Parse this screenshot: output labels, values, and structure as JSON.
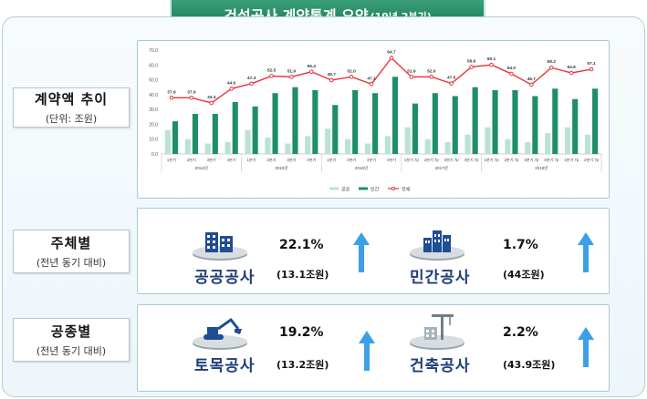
{
  "header": {
    "title": "건설공사 계약통계 요약",
    "subtitle": "(19년 2분기)"
  },
  "sections": {
    "trend": {
      "label": "계약액 추이",
      "note": "(단위: 조원)"
    },
    "by_entity": {
      "label": "주체별",
      "note": "(전년 동기 대비)"
    },
    "by_type": {
      "label": "공종별",
      "note": "(전년 동기 대비)"
    }
  },
  "stats": {
    "public": {
      "name": "공공공사",
      "pct": "22.1%",
      "amount": "(13.1조원)",
      "direction": "up",
      "icon": "office-building-icon"
    },
    "private": {
      "name": "민간공사",
      "pct": "1.7%",
      "amount": "(44조원)",
      "direction": "up",
      "icon": "apartment-icon"
    },
    "civil": {
      "name": "토목공사",
      "pct": "19.2%",
      "amount": "(13.2조원)",
      "direction": "up",
      "icon": "excavator-icon"
    },
    "building": {
      "name": "건축공사",
      "pct": "2.2%",
      "amount": "(43.9조원)",
      "direction": "up",
      "icon": "building-crane-icon"
    }
  },
  "colors": {
    "accent": "#1f8e68",
    "public_bar": "#b9e3d8",
    "private_bar": "#1f8e68",
    "total_line": "#e8333c",
    "arrow": "#3ba0e6",
    "label_text": "#1d3e7a"
  },
  "chart_data": {
    "type": "bar+line",
    "categories": [
      "1분기",
      "2분기",
      "3분기",
      "4분기",
      "1분기",
      "2분기",
      "3분기",
      "4분기",
      "1분기",
      "2분기",
      "3분기",
      "4분기",
      "1분기 7p",
      "2분기 7p",
      "3분기 7p",
      "4분기 7p",
      "1분기 7p",
      "2분기 7p",
      "3분기 7p",
      "4분기 7p",
      "1분기 7p",
      "2분기 7p"
    ],
    "years": [
      {
        "label": "2014년",
        "start": 0,
        "count": 4
      },
      {
        "label": "2015년",
        "start": 4,
        "count": 4
      },
      {
        "label": "2016년",
        "start": 8,
        "count": 4
      },
      {
        "label": "2017년",
        "start": 12,
        "count": 4
      },
      {
        "label": "2018년",
        "start": 16,
        "count": 6
      }
    ],
    "ylim": [
      0,
      70
    ],
    "yticks": [
      "0.0",
      "10.0",
      "20.0",
      "30.0",
      "40.0",
      "50.0",
      "60.0",
      "70.0"
    ],
    "series": [
      {
        "name": "공공",
        "type": "bar",
        "values": [
          16,
          10,
          7,
          8,
          16,
          11,
          7,
          12,
          17,
          10,
          7,
          12,
          18,
          10,
          8,
          13,
          18,
          10,
          8,
          14,
          18,
          13
        ]
      },
      {
        "name": "민간",
        "type": "bar",
        "values": [
          22,
          27,
          27,
          35,
          32,
          41,
          45,
          43,
          33,
          43,
          41,
          52,
          34,
          41,
          39,
          45,
          43,
          43,
          39,
          44,
          37,
          44
        ]
      },
      {
        "name": "전체",
        "type": "line",
        "values": [
          37.9,
          37.9,
          34.4,
          44.0,
          47.4,
          52.5,
          51.9,
          55.4,
          49.7,
          52.0,
          47.1,
          64.7,
          51.9,
          52.0,
          47.5,
          58.6,
          60.1,
          54.0,
          46.7,
          58.2,
          54.6,
          57.1
        ],
        "labels": [
          "37.9",
          "37.9",
          "34.4",
          "44.0",
          "47.4",
          "52.5",
          "51.9",
          "55.4",
          "49.7",
          "52.0",
          "47.1",
          "64.7",
          "51.9",
          "52.0",
          "47.5",
          "58.6",
          "60.1",
          "54.0",
          "46.7",
          "58.2",
          "54.6",
          "57.1"
        ]
      }
    ],
    "grid": false,
    "legend": "bottom-center"
  }
}
